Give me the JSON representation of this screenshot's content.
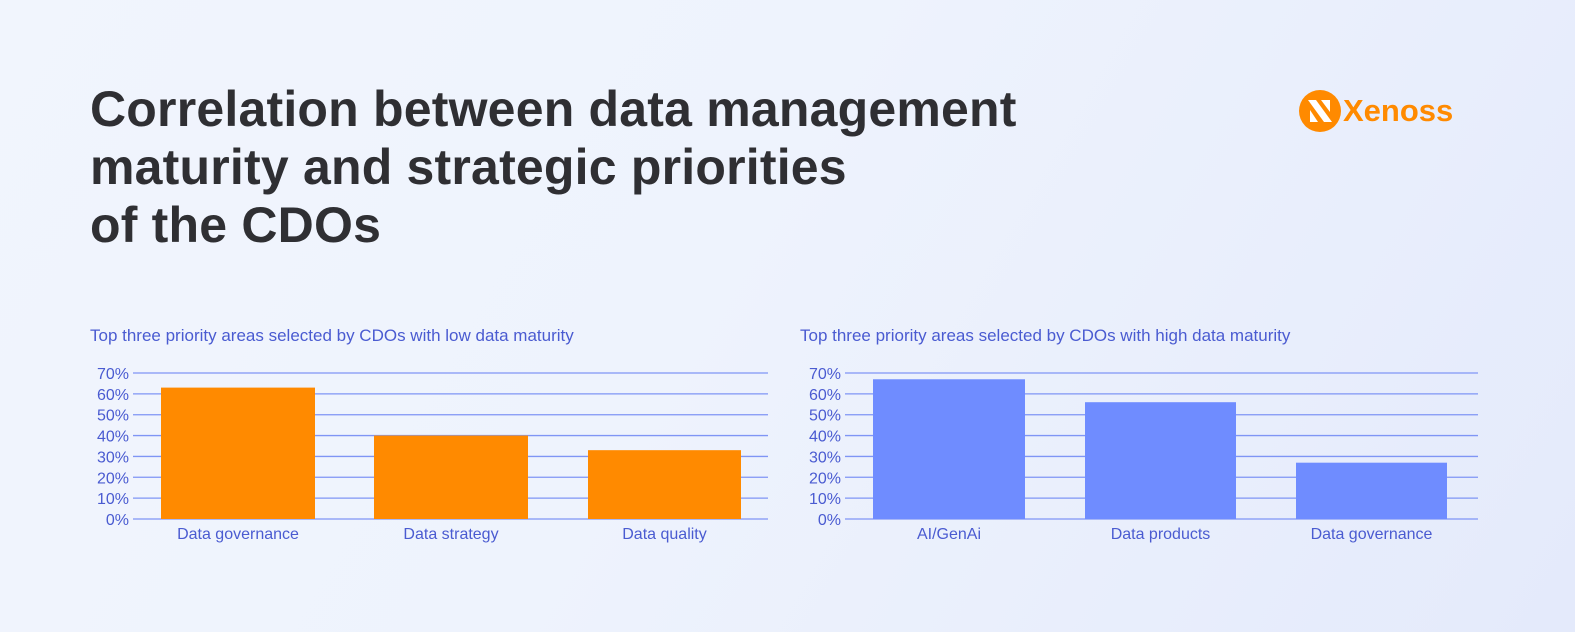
{
  "title_lines": [
    "Correlation between data management",
    "maturity and strategic priorities",
    "of the CDOs"
  ],
  "logo": {
    "text": "Xenoss",
    "color": "#ff8a00"
  },
  "chart_data": [
    {
      "type": "bar",
      "title": "Top three priority areas selected by CDOs with low data maturity",
      "categories": [
        "Data governance",
        "Data strategy",
        "Data quality"
      ],
      "values": [
        63,
        40,
        33
      ],
      "unit": "%",
      "ylim": [
        0,
        70
      ],
      "yticks": [
        "0%",
        "10%",
        "20%",
        "30%",
        "40%",
        "50%",
        "60%",
        "70%"
      ],
      "grid": true,
      "color": "#ff8a00"
    },
    {
      "type": "bar",
      "title": "Top three priority areas selected by CDOs with high data maturity",
      "categories": [
        "AI/GenAi",
        "Data products",
        "Data governance"
      ],
      "values": [
        67,
        56,
        27
      ],
      "unit": "%",
      "ylim": [
        0,
        70
      ],
      "yticks": [
        "0%",
        "10%",
        "20%",
        "30%",
        "40%",
        "50%",
        "60%",
        "70%"
      ],
      "grid": true,
      "color": "#6f8cff"
    }
  ]
}
